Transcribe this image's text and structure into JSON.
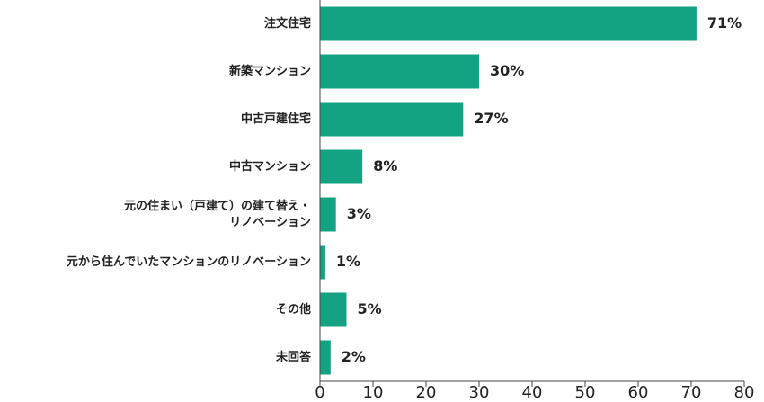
{
  "chart_data": {
    "type": "bar",
    "orientation": "horizontal",
    "categories": [
      "注文住宅",
      "新築マンション",
      "中古戸建住宅",
      "中古マンション",
      "元の住まい（戸建て）の建て替え・\nリノベーション",
      "元から住んでいたマンションのリノベーション",
      "その他",
      "未回答"
    ],
    "values": [
      71,
      30,
      27,
      8,
      3,
      1,
      5,
      2
    ],
    "value_labels": [
      "71%",
      "30%",
      "27%",
      "8%",
      "3%",
      "1%",
      "5%",
      "2%"
    ],
    "color": "#13a383",
    "xlim": [
      0,
      80
    ],
    "xticks": [
      0,
      10,
      20,
      30,
      40,
      50,
      60,
      70,
      80
    ]
  }
}
